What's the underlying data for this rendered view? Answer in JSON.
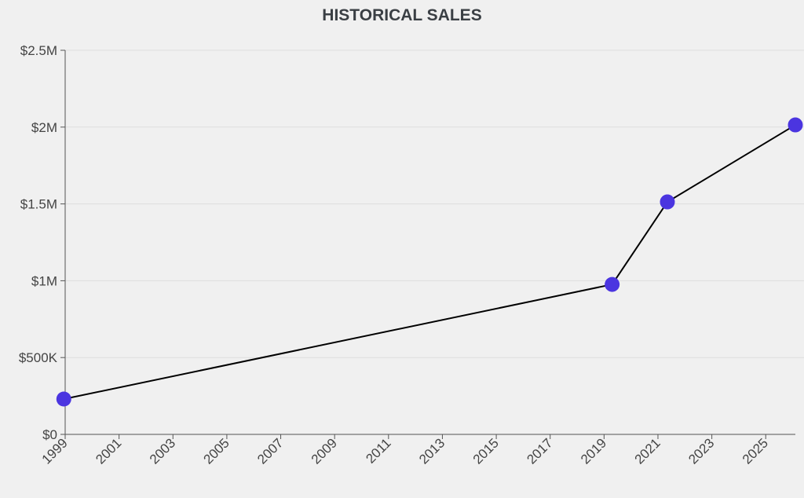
{
  "chart_data": {
    "type": "line",
    "title": "HISTORICAL SALES",
    "xlabel": "",
    "ylabel": "",
    "x": [
      1998.95,
      2019.3,
      2021.35,
      2026.1
    ],
    "values": [
      230000,
      976000,
      1513000,
      2014000
    ],
    "xlim": [
      1999,
      2026.1
    ],
    "ylim": [
      0,
      2500000
    ],
    "x_ticks": [
      "1999",
      "2001",
      "2003",
      "2005",
      "2007",
      "2009",
      "2011",
      "2013",
      "2015",
      "2017",
      "2019",
      "2021",
      "2023",
      "2025"
    ],
    "y_ticks": [
      {
        "value": 0,
        "label": "$0"
      },
      {
        "value": 500000,
        "label": "$500K"
      },
      {
        "value": 1000000,
        "label": "$1M"
      },
      {
        "value": 1500000,
        "label": "$1.5M"
      },
      {
        "value": 2000000,
        "label": "$2M"
      },
      {
        "value": 2500000,
        "label": "$2.5M"
      }
    ],
    "grid": "horizontal",
    "line_color": "#000000",
    "point_color": "#4b35e0"
  }
}
